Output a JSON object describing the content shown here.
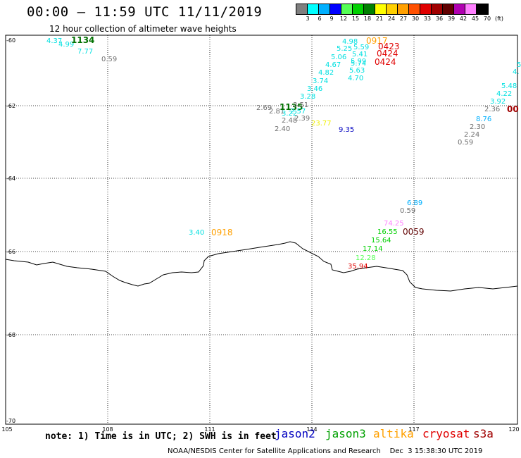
{
  "header": {
    "title": "00:00 – 11:59 UTC 11/11/2019",
    "subtitle": "12 hour collection of altimeter wave heights"
  },
  "scale": {
    "colors": [
      "#7f7f7f",
      "#00ffff",
      "#00b0ff",
      "#0000ff",
      "#55ff55",
      "#00d000",
      "#008000",
      "#ffff00",
      "#ffd000",
      "#ffa000",
      "#ff5000",
      "#e00000",
      "#a00000",
      "#600000",
      "#b000b0",
      "#ff80ff",
      "#000000"
    ],
    "labels": [
      "3",
      "6",
      "9",
      "12",
      "15",
      "18",
      "21",
      "24",
      "27",
      "30",
      "33",
      "36",
      "39",
      "42",
      "45",
      "70",
      "(ft)"
    ]
  },
  "axes": {
    "lat_labels": [
      "-60",
      "-62",
      "-64",
      "-66",
      "-68",
      "-70"
    ],
    "lon_labels": [
      "105",
      "108",
      "111",
      "114",
      "117",
      "120"
    ]
  },
  "observations": [
    {
      "text": "4.37",
      "color": "#00e0e0"
    },
    {
      "text": "4.99",
      "color": "#00e0e0"
    },
    {
      "text": "1134",
      "color": "#007000"
    },
    {
      "text": "7.77",
      "color": "#00e0e0"
    },
    {
      "text": "0.59",
      "color": "#707070"
    },
    {
      "text": "4.98",
      "color": "#00e0e0"
    },
    {
      "text": "0917",
      "color": "#ffa000"
    },
    {
      "text": "5.59",
      "color": "#00e0e0"
    },
    {
      "text": "5.25",
      "color": "#00e0e0"
    },
    {
      "text": "0423",
      "color": "#e00000"
    },
    {
      "text": "5.41",
      "color": "#00e0e0"
    },
    {
      "text": "0424",
      "color": "#e00000"
    },
    {
      "text": "5.06",
      "color": "#00e0e0"
    },
    {
      "text": "5.99",
      "color": "#00e0e0"
    },
    {
      "text": "4.67",
      "color": "#00e0e0"
    },
    {
      "text": "5.74",
      "color": "#00e0e0"
    },
    {
      "text": "0424",
      "color": "#e00000"
    },
    {
      "text": "4.82",
      "color": "#00e0e0"
    },
    {
      "text": "5.63",
      "color": "#00e0e0"
    },
    {
      "text": "3.74",
      "color": "#00e0e0"
    },
    {
      "text": "4.70",
      "color": "#00e0e0"
    },
    {
      "text": "3.46",
      "color": "#00e0e0"
    },
    {
      "text": "3.28",
      "color": "#00e0e0"
    },
    {
      "text": "2.69",
      "color": "#707070"
    },
    {
      "text": "2.81",
      "color": "#707070"
    },
    {
      "text": "1135",
      "color": "#007000"
    },
    {
      "text": "3.51",
      "color": "#707070"
    },
    {
      "text": "3.22",
      "color": "#00e0e0"
    },
    {
      "text": "2.57",
      "color": "#00e0e0"
    },
    {
      "text": "2.48",
      "color": "#707070"
    },
    {
      "text": "2.39",
      "color": "#707070"
    },
    {
      "text": "2.40",
      "color": "#707070"
    },
    {
      "text": "23.77",
      "color": "#f0f000"
    },
    {
      "text": "9.35",
      "color": "#0000c0"
    },
    {
      "text": "5",
      "color": "#00e0e0"
    },
    {
      "text": "4.",
      "color": "#00e0e0"
    },
    {
      "text": "5.48",
      "color": "#00e0e0"
    },
    {
      "text": "4.22",
      "color": "#00e0e0"
    },
    {
      "text": "3.92",
      "color": "#00e0e0"
    },
    {
      "text": "2.36",
      "color": "#707070"
    },
    {
      "text": "00",
      "color": "#a00000"
    },
    {
      "text": "8.76",
      "color": "#00b0ff"
    },
    {
      "text": "2.30",
      "color": "#707070"
    },
    {
      "text": "2.24",
      "color": "#707070"
    },
    {
      "text": "0.59",
      "color": "#707070"
    },
    {
      "text": "6.89",
      "color": "#00b0ff"
    },
    {
      "text": "0.59",
      "color": "#707070"
    },
    {
      "text": "74.25",
      "color": "#ff80ff"
    },
    {
      "text": "16.55",
      "color": "#00d000"
    },
    {
      "text": "0059",
      "color": "#600000"
    },
    {
      "text": "15.64",
      "color": "#00d000"
    },
    {
      "text": "17.14",
      "color": "#00d000"
    },
    {
      "text": "12.28",
      "color": "#55ff55"
    },
    {
      "text": "35.94",
      "color": "#e00000"
    },
    {
      "text": "3.40",
      "color": "#00e0e0"
    },
    {
      "text": "0918",
      "color": "#ffa000"
    }
  ],
  "footer": {
    "note": "note: 1) Time is in UTC; 2) SWH is in feet",
    "legend": [
      {
        "name": "jason2",
        "color": "#0000c0"
      },
      {
        "name": "jason3",
        "color": "#00a000"
      },
      {
        "name": "altika",
        "color": "#ffa000"
      },
      {
        "name": "cryosat",
        "color": "#e00000"
      },
      {
        "name": "s3a",
        "color": "#a00000"
      }
    ],
    "credit": "NOAA/NESDIS Center for Satellite Applications and Research    Dec  3 15:38:30 UTC 2019"
  }
}
